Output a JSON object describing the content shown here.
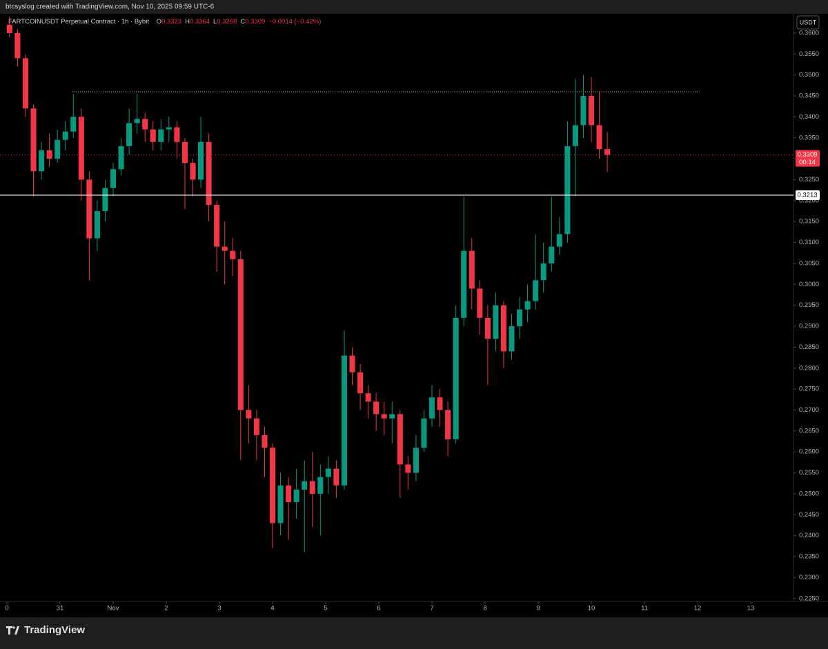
{
  "chart_data": {
    "type": "candlestick",
    "attribution": "btcsyslog created with TradingView.com, Nov 10, 2025 09:59 UTC-6",
    "symbol": "FARTCOINUSDT Perpetual Contract · 1h · Bybit",
    "ohlc_legend": [
      {
        "key": "O",
        "value": "0.3323"
      },
      {
        "key": "H",
        "value": "0.3364"
      },
      {
        "key": "L",
        "value": "0.3268"
      },
      {
        "key": "C",
        "value": "0.3309"
      }
    ],
    "change": "−0.0014 (−0.42%)",
    "legend_color": "#f23645",
    "currency": "USDT",
    "brand": "TradingView",
    "up_color": "#089981",
    "down_color": "#f23645",
    "x": [
      0.05,
      0.2,
      0.35,
      0.5,
      0.65,
      0.8,
      0.95,
      1.1,
      1.25,
      1.4,
      1.55,
      1.7,
      1.85,
      2,
      2.15,
      2.3,
      2.45,
      2.6,
      2.75,
      2.9,
      3.05,
      3.2,
      3.35,
      3.5,
      3.65,
      3.8,
      3.95,
      4.1,
      4.25,
      4.4,
      4.55,
      4.7,
      4.85,
      5,
      5.15,
      5.3,
      5.45,
      5.6,
      5.75,
      5.9,
      6.05,
      6.2,
      6.35,
      6.5,
      6.65,
      6.8,
      6.95,
      7.1,
      7.25,
      7.4,
      7.55,
      7.7,
      7.85,
      8,
      8.15,
      8.3,
      8.45,
      8.6,
      8.75,
      8.9,
      9.05,
      9.2,
      9.35,
      9.5,
      9.65,
      9.8,
      9.95,
      10.1,
      10.25,
      10.4,
      10.55,
      10.7,
      10.85,
      11,
      11.15,
      11.3
    ],
    "open": [
      0.362,
      0.36,
      0.354,
      0.342,
      0.327,
      0.332,
      0.33,
      0.3345,
      0.3365,
      0.34,
      0.325,
      0.311,
      0.3175,
      0.323,
      0.3275,
      0.333,
      0.3385,
      0.3395,
      0.337,
      0.334,
      0.337,
      0.3375,
      0.334,
      0.329,
      0.325,
      0.334,
      0.319,
      0.309,
      0.308,
      0.306,
      0.27,
      0.268,
      0.264,
      0.261,
      0.243,
      0.252,
      0.248,
      0.251,
      0.253,
      0.25,
      0.254,
      0.256,
      0.252,
      0.283,
      0.279,
      0.274,
      0.272,
      0.269,
      0.268,
      0.269,
      0.257,
      0.255,
      0.261,
      0.268,
      0.273,
      0.27,
      0.263,
      0.292,
      0.308,
      0.299,
      0.292,
      0.287,
      0.295,
      0.284,
      0.29,
      0.294,
      0.296,
      0.301,
      0.305,
      0.309,
      0.312,
      0.333,
      0.338,
      0.345,
      0.338,
      0.3323
    ],
    "high": [
      0.364,
      0.361,
      0.355,
      0.343,
      0.334,
      0.336,
      0.337,
      0.339,
      0.3455,
      0.342,
      0.327,
      0.32,
      0.325,
      0.329,
      0.335,
      0.342,
      0.3455,
      0.341,
      0.339,
      0.3395,
      0.34,
      0.339,
      0.335,
      0.33,
      0.34,
      0.336,
      0.32,
      0.315,
      0.311,
      0.308,
      0.276,
      0.27,
      0.266,
      0.262,
      0.255,
      0.254,
      0.256,
      0.258,
      0.26,
      0.257,
      0.259,
      0.258,
      0.289,
      0.285,
      0.281,
      0.276,
      0.274,
      0.272,
      0.272,
      0.27,
      0.259,
      0.264,
      0.27,
      0.276,
      0.275,
      0.272,
      0.295,
      0.321,
      0.311,
      0.301,
      0.295,
      0.298,
      0.296,
      0.293,
      0.297,
      0.3,
      0.312,
      0.31,
      0.321,
      0.316,
      0.339,
      0.349,
      0.35,
      0.3495,
      0.346,
      0.3364
    ],
    "low": [
      0.359,
      0.352,
      0.34,
      0.321,
      0.325,
      0.328,
      0.329,
      0.332,
      0.335,
      0.32,
      0.301,
      0.308,
      0.315,
      0.321,
      0.326,
      0.331,
      0.336,
      0.334,
      0.332,
      0.332,
      0.334,
      0.33,
      0.318,
      0.321,
      0.323,
      0.315,
      0.303,
      0.3,
      0.302,
      0.258,
      0.262,
      0.258,
      0.254,
      0.237,
      0.24,
      0.239,
      0.244,
      0.236,
      0.242,
      0.24,
      0.25,
      0.249,
      0.251,
      0.276,
      0.27,
      0.268,
      0.265,
      0.264,
      0.262,
      0.249,
      0.251,
      0.253,
      0.26,
      0.266,
      0.266,
      0.259,
      0.262,
      0.29,
      0.294,
      0.288,
      0.276,
      0.284,
      0.28,
      0.282,
      0.287,
      0.291,
      0.294,
      0.298,
      0.303,
      0.307,
      0.31,
      0.321,
      0.335,
      0.334,
      0.33,
      0.3268
    ],
    "close": [
      0.36,
      0.354,
      0.342,
      0.327,
      0.332,
      0.33,
      0.3345,
      0.3365,
      0.34,
      0.325,
      0.311,
      0.3175,
      0.323,
      0.3275,
      0.333,
      0.3385,
      0.3395,
      0.337,
      0.334,
      0.337,
      0.3375,
      0.334,
      0.329,
      0.325,
      0.334,
      0.319,
      0.309,
      0.308,
      0.306,
      0.27,
      0.268,
      0.264,
      0.261,
      0.243,
      0.252,
      0.248,
      0.251,
      0.253,
      0.25,
      0.254,
      0.256,
      0.252,
      0.283,
      0.279,
      0.274,
      0.272,
      0.269,
      0.268,
      0.269,
      0.257,
      0.255,
      0.261,
      0.268,
      0.273,
      0.27,
      0.263,
      0.292,
      0.308,
      0.299,
      0.292,
      0.287,
      0.295,
      0.284,
      0.29,
      0.294,
      0.296,
      0.301,
      0.305,
      0.309,
      0.312,
      0.333,
      0.338,
      0.345,
      0.338,
      0.3323,
      0.3309
    ],
    "xlim": [
      -0.13,
      14.805
    ],
    "xticks": [
      {
        "value": 0,
        "label": "0"
      },
      {
        "value": 1,
        "label": "31"
      },
      {
        "value": 2,
        "label": "Nov"
      },
      {
        "value": 3,
        "label": "2"
      },
      {
        "value": 4,
        "label": "3"
      },
      {
        "value": 5,
        "label": "4"
      },
      {
        "value": 6,
        "label": "5"
      },
      {
        "value": 7,
        "label": "6"
      },
      {
        "value": 8,
        "label": "7"
      },
      {
        "value": 9,
        "label": "8"
      },
      {
        "value": 10,
        "label": "9"
      },
      {
        "value": 11,
        "label": "10"
      },
      {
        "value": 12,
        "label": "11"
      },
      {
        "value": 13,
        "label": "12"
      },
      {
        "value": 14,
        "label": "13"
      }
    ],
    "ylim": [
      0.2243,
      0.3646
    ],
    "yticks": [
      {
        "value": 0.225,
        "label": "0.2250"
      },
      {
        "value": 0.23,
        "label": "0.2300"
      },
      {
        "value": 0.235,
        "label": "0.2350"
      },
      {
        "value": 0.24,
        "label": "0.2400"
      },
      {
        "value": 0.245,
        "label": "0.2450"
      },
      {
        "value": 0.25,
        "label": "0.2500"
      },
      {
        "value": 0.255,
        "label": "0.2550"
      },
      {
        "value": 0.26,
        "label": "0.2600"
      },
      {
        "value": 0.265,
        "label": "0.2650"
      },
      {
        "value": 0.27,
        "label": "0.2700"
      },
      {
        "value": 0.275,
        "label": "0.2750"
      },
      {
        "value": 0.28,
        "label": "0.2800"
      },
      {
        "value": 0.285,
        "label": "0.2850"
      },
      {
        "value": 0.29,
        "label": "0.2900"
      },
      {
        "value": 0.295,
        "label": "0.2950"
      },
      {
        "value": 0.3,
        "label": "0.3000"
      },
      {
        "value": 0.305,
        "label": "0.3050"
      },
      {
        "value": 0.31,
        "label": "0.3100"
      },
      {
        "value": 0.315,
        "label": "0.3150"
      },
      {
        "value": 0.32,
        "label": "0.3200"
      },
      {
        "value": 0.325,
        "label": "0.3250"
      },
      {
        "value": 0.33,
        "label": "0.3300"
      },
      {
        "value": 0.335,
        "label": "0.3350"
      },
      {
        "value": 0.34,
        "label": "0.3400"
      },
      {
        "value": 0.345,
        "label": "0.3450"
      },
      {
        "value": 0.35,
        "label": "0.3500"
      },
      {
        "value": 0.355,
        "label": "0.3550"
      },
      {
        "value": 0.36,
        "label": "0.3600"
      }
    ],
    "horizontal_line": {
      "value": 0.3213,
      "label": "0.3213",
      "color": "#ffffff"
    },
    "resistance_line": {
      "value": 0.346,
      "x_start": 1.22,
      "x_end": 13.03,
      "color": "#c8c8c8"
    },
    "last_price": {
      "value": 0.3309,
      "label": "0.3309",
      "countdown": "00:14",
      "color": "#f23645"
    }
  }
}
